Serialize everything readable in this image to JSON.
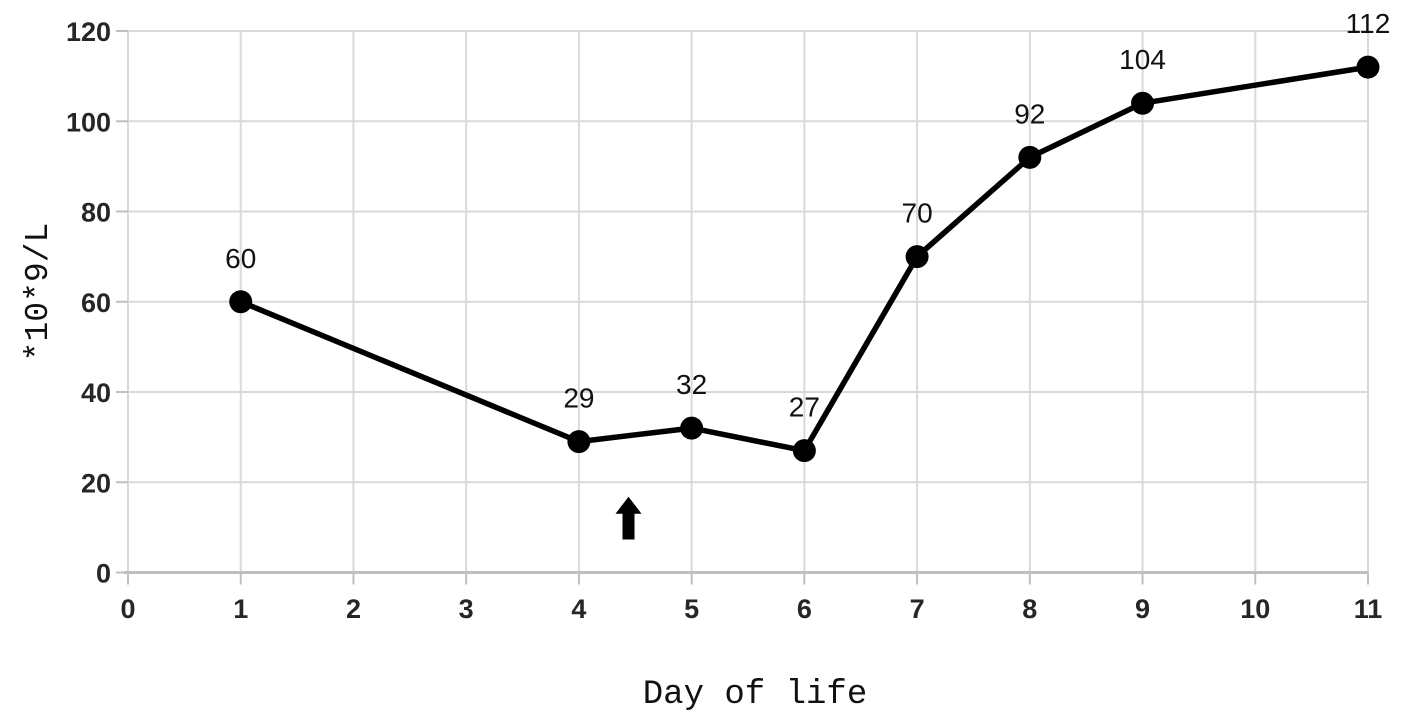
{
  "figure": {
    "background": "#ffffff"
  },
  "chart_data": {
    "type": "line",
    "title": "",
    "xlabel": "Day of life",
    "ylabel": "*10*9/L",
    "x": [
      1,
      4,
      5,
      6,
      7,
      8,
      9,
      11
    ],
    "values": [
      60,
      29,
      32,
      27,
      70,
      92,
      104,
      112
    ],
    "point_labels": [
      "60",
      "29",
      "32",
      "27",
      "70",
      "92",
      "104",
      "112"
    ],
    "xlim": [
      0,
      11
    ],
    "ylim": [
      0,
      120
    ],
    "x_ticks": [
      0,
      1,
      2,
      3,
      4,
      5,
      6,
      7,
      8,
      9,
      10,
      11
    ],
    "y_ticks": [
      0,
      20,
      40,
      60,
      80,
      100,
      120
    ],
    "grid": true,
    "legend": false,
    "annotations": [
      {
        "type": "up-arrow",
        "x": 4.44,
        "y_base": 7.3,
        "y_tip": 16.8
      }
    ],
    "colors": {
      "line": "#000000",
      "marker": "#000000",
      "grid": "#d9d9d9",
      "axis": "#bfbfbf",
      "tick_label": "#262626",
      "value_label": "#111111"
    }
  }
}
